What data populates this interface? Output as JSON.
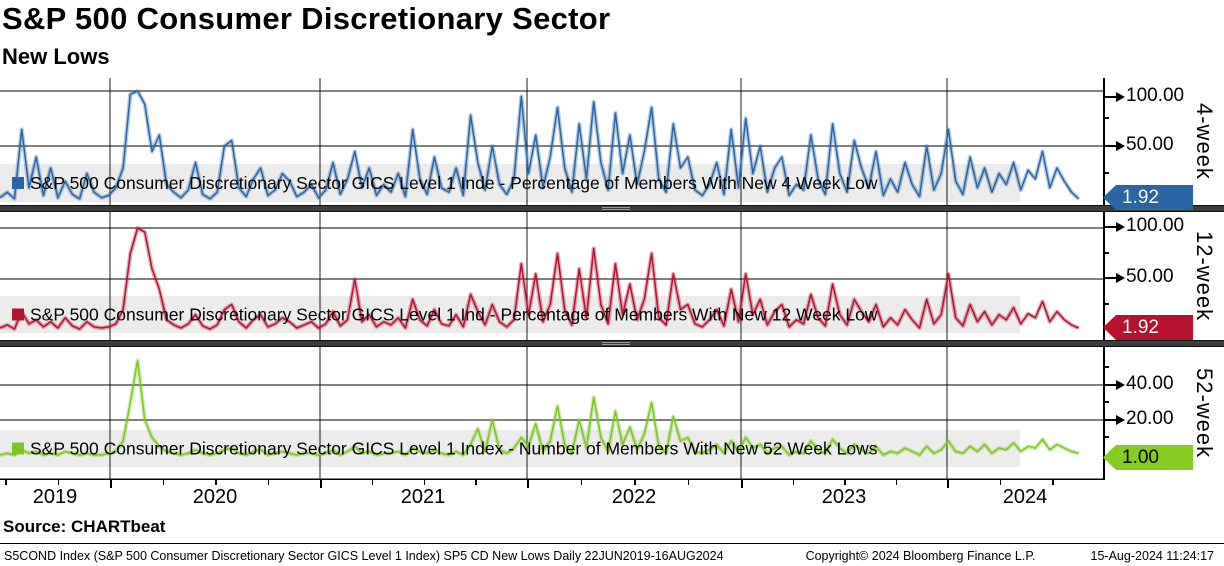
{
  "header": {
    "title": "S&P 500 Consumer Discretionary Sector",
    "subtitle": "New Lows"
  },
  "source_line": "Source: CHARTbeat",
  "footer": {
    "left": "S5COND Index (S&P 500 Consumer Discretionary Sector GICS Level 1 Index) SP5 CD New Lows  Daily 22JUN2019-16AUG2024",
    "copyright": "Copyright© 2024 Bloomberg Finance L.P.",
    "timestamp": "15-Aug-2024 11:24:17"
  },
  "x_axis": {
    "year_labels": [
      "2019",
      "2020",
      "2021",
      "2022",
      "2023",
      "2024"
    ],
    "range": "22JUN2019-16AUG2024"
  },
  "chart_data": [
    {
      "type": "line",
      "panel_label": "4-week",
      "legend": "S&P 500 Consumer Discretionary Sector GICS Level 1 Inde - Percentage of Members With New 4 Week Low",
      "color": "#2a66a5",
      "tag_color": "#2a66a5",
      "tag_text_color": "#ffffff",
      "ylabel": "Percentage of Members With New 4 Week Low",
      "ylim": [
        0,
        112
      ],
      "yticks": [
        100,
        50
      ],
      "ytick_labels": [
        "100.00",
        "50.00"
      ],
      "last_label": "1.92",
      "values": [
        3,
        8,
        2,
        65,
        12,
        40,
        5,
        30,
        3,
        18,
        6,
        2,
        25,
        8,
        3,
        5,
        12,
        30,
        97,
        100,
        88,
        45,
        60,
        15,
        8,
        3,
        10,
        35,
        6,
        2,
        8,
        50,
        55,
        12,
        4,
        20,
        30,
        5,
        10,
        25,
        18,
        4,
        8,
        15,
        3,
        10,
        35,
        6,
        20,
        45,
        12,
        30,
        5,
        15,
        8,
        25,
        4,
        65,
        20,
        6,
        40,
        12,
        8,
        30,
        5,
        78,
        35,
        10,
        50,
        15,
        6,
        20,
        95,
        25,
        60,
        12,
        40,
        85,
        30,
        8,
        70,
        20,
        90,
        35,
        10,
        80,
        25,
        60,
        15,
        45,
        85,
        20,
        8,
        70,
        30,
        40,
        10,
        5,
        15,
        35,
        6,
        65,
        12,
        75,
        25,
        50,
        8,
        30,
        40,
        5,
        15,
        10,
        60,
        20,
        6,
        70,
        25,
        8,
        55,
        30,
        12,
        45,
        5,
        20,
        8,
        35,
        15,
        4,
        50,
        10,
        25,
        65,
        18,
        6,
        40,
        12,
        30,
        8,
        25,
        15,
        35,
        10,
        28,
        20,
        45,
        12,
        30,
        18,
        8,
        1.92
      ]
    },
    {
      "type": "line",
      "panel_label": "12-week",
      "legend": "S&P 500 Consumer Discretionary Sector GICS Level 1 Ind - Percentage of Members With New 12 Week Low",
      "color": "#b51230",
      "tag_color": "#b51230",
      "tag_text_color": "#ffffff",
      "ylabel": "Percentage of Members With New 12 Week Low",
      "ylim": [
        0,
        116
      ],
      "yticks": [
        100,
        50
      ],
      "ytick_labels": [
        "100.00",
        "50.00"
      ],
      "last_label": "1.92",
      "values": [
        2,
        5,
        1,
        18,
        6,
        10,
        3,
        8,
        2,
        12,
        4,
        1,
        8,
        3,
        2,
        3,
        6,
        20,
        75,
        100,
        96,
        60,
        40,
        10,
        5,
        2,
        6,
        15,
        4,
        1,
        5,
        20,
        25,
        8,
        2,
        10,
        15,
        3,
        6,
        12,
        8,
        2,
        5,
        8,
        2,
        6,
        18,
        4,
        10,
        50,
        8,
        15,
        3,
        8,
        5,
        12,
        2,
        30,
        10,
        4,
        20,
        6,
        4,
        15,
        3,
        35,
        18,
        5,
        25,
        8,
        3,
        10,
        65,
        15,
        55,
        8,
        25,
        75,
        20,
        5,
        60,
        12,
        80,
        25,
        6,
        65,
        15,
        45,
        10,
        30,
        75,
        12,
        5,
        55,
        20,
        25,
        6,
        3,
        10,
        20,
        4,
        40,
        8,
        55,
        15,
        30,
        5,
        18,
        25,
        3,
        10,
        6,
        35,
        12,
        4,
        45,
        15,
        5,
        30,
        18,
        8,
        25,
        3,
        12,
        5,
        20,
        10,
        2,
        30,
        6,
        15,
        55,
        12,
        4,
        25,
        8,
        18,
        5,
        15,
        10,
        22,
        6,
        16,
        12,
        28,
        8,
        18,
        10,
        5,
        1.92
      ]
    },
    {
      "type": "line",
      "panel_label": "52-week",
      "legend": "S&P 500 Consumer Discretionary Sector GICS Level 1 Index - Number of Members With New 52 Week Lows",
      "color": "#7cc620",
      "tag_color": "#84cc1f",
      "tag_text_color": "#000000",
      "ylabel": "Number of Members With New 52 Week Lows",
      "ylim": [
        0,
        62
      ],
      "yticks": [
        40,
        20
      ],
      "ytick_labels": [
        "40.00",
        "20.00"
      ],
      "last_label": "1.00",
      "values": [
        0,
        1,
        0,
        3,
        1,
        2,
        0,
        1,
        0,
        2,
        1,
        0,
        1,
        0,
        0,
        1,
        2,
        8,
        30,
        54,
        20,
        10,
        5,
        2,
        1,
        0,
        1,
        3,
        1,
        0,
        1,
        3,
        4,
        1,
        0,
        2,
        3,
        0,
        1,
        2,
        1,
        0,
        1,
        1,
        0,
        1,
        3,
        0,
        2,
        5,
        1,
        2,
        0,
        1,
        1,
        2,
        0,
        4,
        2,
        1,
        3,
        1,
        0,
        2,
        0,
        6,
        15,
        2,
        20,
        3,
        1,
        4,
        10,
        5,
        18,
        2,
        8,
        28,
        6,
        1,
        20,
        4,
        33,
        10,
        2,
        25,
        6,
        16,
        3,
        12,
        30,
        5,
        1,
        22,
        8,
        10,
        2,
        1,
        3,
        6,
        1,
        8,
        2,
        10,
        4,
        6,
        1,
        4,
        5,
        0,
        2,
        1,
        8,
        3,
        1,
        9,
        4,
        1,
        6,
        3,
        1,
        5,
        0,
        2,
        1,
        4,
        2,
        0,
        5,
        1,
        3,
        8,
        2,
        1,
        5,
        2,
        6,
        1,
        4,
        3,
        7,
        2,
        5,
        4,
        9,
        3,
        6,
        4,
        2,
        1
      ]
    }
  ]
}
